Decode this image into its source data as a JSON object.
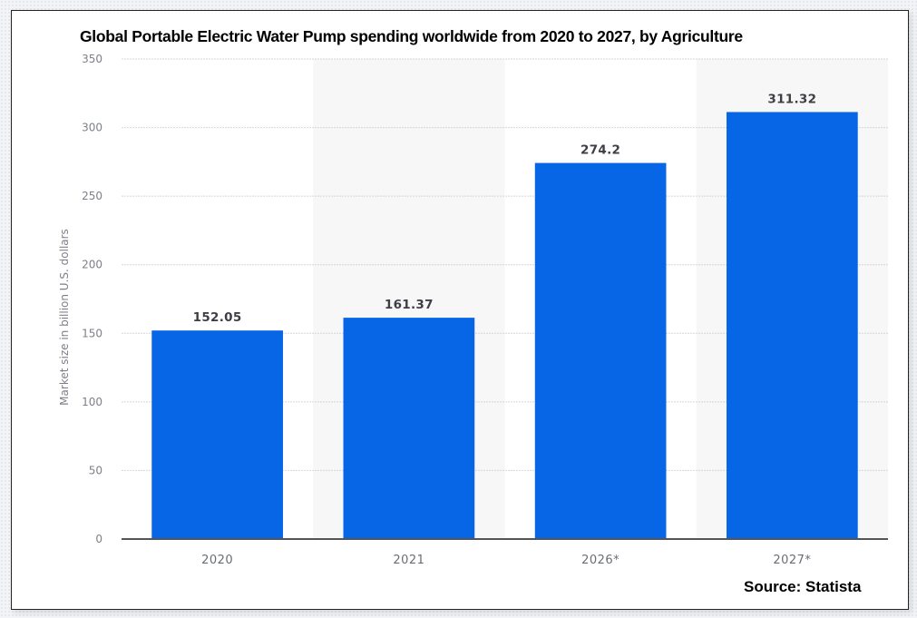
{
  "chart_data": {
    "type": "bar",
    "title": "Global Portable Electric Water Pump spending worldwide from 2020 to 2027, by Agriculture",
    "xlabel": "",
    "ylabel": "Market size in billion U.S. dollars",
    "categories": [
      "2020",
      "2021",
      "2026*",
      "2027*"
    ],
    "values": [
      152.05,
      161.37,
      274.2,
      311.32
    ],
    "value_labels": [
      "152.05",
      "161.37",
      "274.2",
      "311.32"
    ],
    "ylim": [
      0,
      350
    ],
    "yticks": [
      0,
      50,
      100,
      150,
      200,
      250,
      300,
      350
    ],
    "grid": true,
    "legend": "none",
    "bar_color": "#0766e6",
    "alternate_band_color": "#f7f7f7",
    "source": "Source: Statista"
  }
}
